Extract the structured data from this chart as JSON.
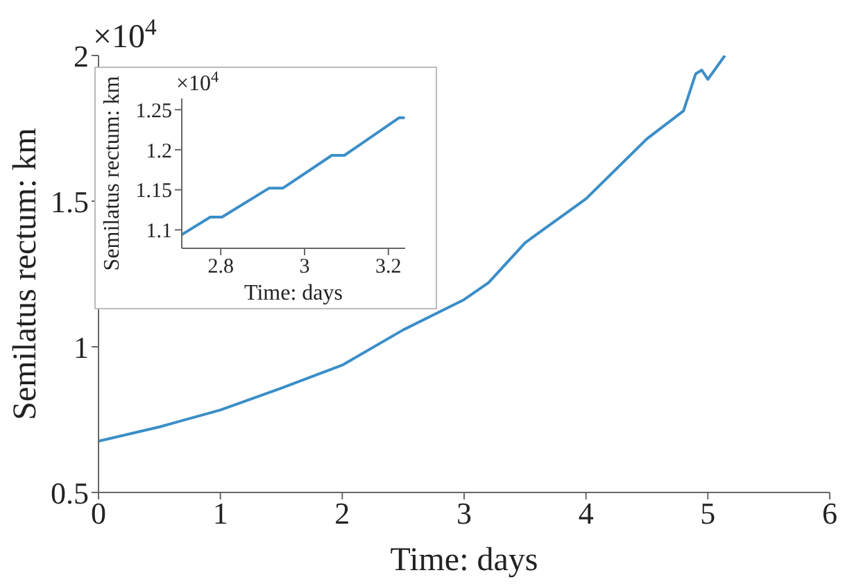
{
  "chart_data": [
    {
      "type": "line",
      "xlabel": "Time: days",
      "ylabel": "Semilatus rectum: km",
      "annotations": [
        "×10$^{4}$"
      ],
      "x": [
        0,
        0.5,
        1,
        1.5,
        2,
        2.5,
        3,
        3.2,
        3.5,
        4,
        4.5,
        4.8,
        4.9,
        4.95,
        5.0,
        5.14
      ],
      "series": [
        {
          "color": "#3b8ec8",
          "values": [
            0.676,
            0.725,
            0.783,
            0.858,
            0.937,
            1.058,
            1.162,
            1.22,
            1.357,
            1.508,
            1.714,
            1.81,
            1.937,
            1.95,
            1.918,
            2.0
          ]
        }
      ],
      "xlim": [
        0,
        6
      ],
      "xticks": [
        0,
        1,
        2,
        3,
        4,
        5,
        6
      ],
      "ylim": [
        0.5,
        2
      ],
      "yticks": [
        0.5,
        1,
        1.5,
        2
      ],
      "grid": false,
      "legend": false,
      "marker": "none",
      "line_style": "solid"
    },
    {
      "type": "line",
      "xlabel": "Time: days",
      "ylabel": "Semilatus rectum: km",
      "annotations": [
        "×10$^{4}$"
      ],
      "x": [
        2.707,
        2.775,
        2.803,
        2.915,
        2.948,
        3.065,
        3.095,
        3.226,
        3.239
      ],
      "series": [
        {
          "color": "#3b8ec8",
          "values": [
            1.094,
            1.116,
            1.116,
            1.152,
            1.152,
            1.193,
            1.193,
            1.24,
            1.24
          ]
        }
      ],
      "xlim": [
        2.707,
        3.24
      ],
      "xticks": [
        2.8,
        3,
        3.2
      ],
      "ylim": [
        1.077,
        1.264
      ],
      "yticks": [
        1.1,
        1.15,
        1.2,
        1.25
      ],
      "grid": false,
      "legend": false,
      "marker": "none",
      "line_style": "solid"
    }
  ]
}
